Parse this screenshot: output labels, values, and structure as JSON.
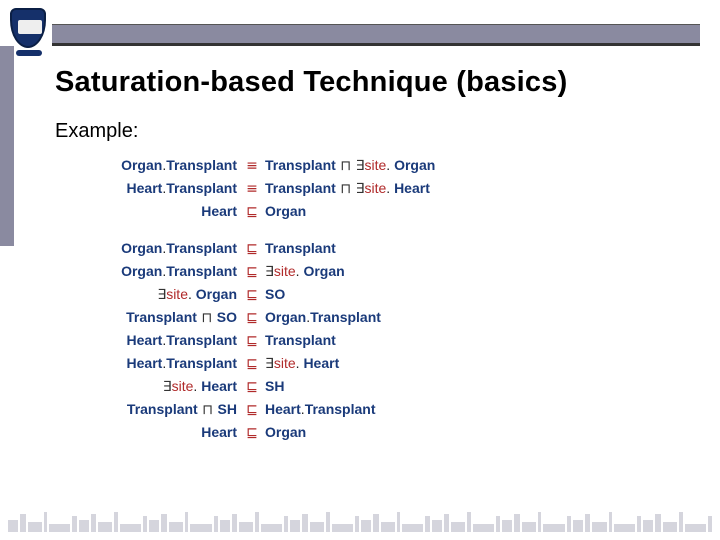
{
  "colors": {
    "header_bar": "#8a8aa0",
    "title_text": "#000000",
    "navy": "#1a3a7a",
    "red": "#b02a2a",
    "black": "#222222",
    "background": "#ffffff"
  },
  "title": "Saturation-based Technique (basics)",
  "example_label": "Example:",
  "symbols": {
    "equiv": "≡",
    "sqsub": "⊑",
    "sqcap": "⊓",
    "exists": "∃"
  },
  "fontsize": {
    "title": 29,
    "example": 20,
    "axiom": 14
  },
  "axioms_top": [
    {
      "lhs": [
        {
          "t": "Organ",
          "c": "navy"
        },
        {
          "t": ".",
          "c": "blk"
        },
        {
          "t": "Transplant",
          "c": "navy"
        }
      ],
      "op": "equiv",
      "rhs": [
        {
          "t": "Transplant",
          "c": "navy"
        },
        {
          "t": " ⊓ ",
          "c": "sym"
        },
        {
          "t": "∃",
          "c": "sym"
        },
        {
          "t": "site",
          "c": "red"
        },
        {
          "t": ". ",
          "c": "blk"
        },
        {
          "t": "Organ",
          "c": "navy"
        }
      ]
    },
    {
      "lhs": [
        {
          "t": "Heart",
          "c": "navy"
        },
        {
          "t": ".",
          "c": "blk"
        },
        {
          "t": "Transplant",
          "c": "navy"
        }
      ],
      "op": "equiv",
      "rhs": [
        {
          "t": "Transplant",
          "c": "navy"
        },
        {
          "t": " ⊓ ",
          "c": "sym"
        },
        {
          "t": "∃",
          "c": "sym"
        },
        {
          "t": "site",
          "c": "red"
        },
        {
          "t": ". ",
          "c": "blk"
        },
        {
          "t": "Heart",
          "c": "navy"
        }
      ]
    },
    {
      "lhs": [
        {
          "t": "Heart",
          "c": "navy"
        }
      ],
      "op": "sqsub",
      "rhs": [
        {
          "t": "Organ",
          "c": "navy"
        }
      ]
    }
  ],
  "axioms_bottom": [
    {
      "lhs": [
        {
          "t": "Organ",
          "c": "navy"
        },
        {
          "t": ".",
          "c": "blk"
        },
        {
          "t": "Transplant",
          "c": "navy"
        }
      ],
      "op": "sqsub",
      "rhs": [
        {
          "t": "Transplant",
          "c": "navy"
        }
      ]
    },
    {
      "lhs": [
        {
          "t": "Organ",
          "c": "navy"
        },
        {
          "t": ".",
          "c": "blk"
        },
        {
          "t": "Transplant",
          "c": "navy"
        }
      ],
      "op": "sqsub",
      "rhs": [
        {
          "t": "∃",
          "c": "sym"
        },
        {
          "t": "site",
          "c": "red"
        },
        {
          "t": ". ",
          "c": "blk"
        },
        {
          "t": "Organ",
          "c": "navy"
        }
      ]
    },
    {
      "lhs": [
        {
          "t": "∃",
          "c": "sym"
        },
        {
          "t": "site",
          "c": "red"
        },
        {
          "t": ". ",
          "c": "blk"
        },
        {
          "t": "Organ",
          "c": "navy"
        }
      ],
      "op": "sqsub",
      "rhs": [
        {
          "t": "SO",
          "c": "navy"
        }
      ]
    },
    {
      "lhs": [
        {
          "t": "Transplant",
          "c": "navy"
        },
        {
          "t": " ⊓ ",
          "c": "sym"
        },
        {
          "t": "SO",
          "c": "navy"
        }
      ],
      "op": "sqsub",
      "rhs": [
        {
          "t": "Organ",
          "c": "navy"
        },
        {
          "t": ".",
          "c": "blk"
        },
        {
          "t": "Transplant",
          "c": "navy"
        }
      ]
    },
    {
      "lhs": [
        {
          "t": "Heart",
          "c": "navy"
        },
        {
          "t": ".",
          "c": "blk"
        },
        {
          "t": "Transplant",
          "c": "navy"
        }
      ],
      "op": "sqsub",
      "rhs": [
        {
          "t": "Transplant",
          "c": "navy"
        }
      ]
    },
    {
      "lhs": [
        {
          "t": "Heart",
          "c": "navy"
        },
        {
          "t": ".",
          "c": "blk"
        },
        {
          "t": "Transplant",
          "c": "navy"
        }
      ],
      "op": "sqsub",
      "rhs": [
        {
          "t": "∃",
          "c": "sym"
        },
        {
          "t": "site",
          "c": "red"
        },
        {
          "t": ". ",
          "c": "blk"
        },
        {
          "t": "Heart",
          "c": "navy"
        }
      ]
    },
    {
      "lhs": [
        {
          "t": "∃",
          "c": "sym"
        },
        {
          "t": "site",
          "c": "red"
        },
        {
          "t": ". ",
          "c": "blk"
        },
        {
          "t": "Heart",
          "c": "navy"
        }
      ],
      "op": "sqsub",
      "rhs": [
        {
          "t": "SH",
          "c": "navy"
        }
      ]
    },
    {
      "lhs": [
        {
          "t": "Transplant",
          "c": "navy"
        },
        {
          "t": " ⊓ ",
          "c": "sym"
        },
        {
          "t": "SH",
          "c": "navy"
        }
      ],
      "op": "sqsub",
      "rhs": [
        {
          "t": "Heart",
          "c": "navy"
        },
        {
          "t": ".",
          "c": "blk"
        },
        {
          "t": "Transplant",
          "c": "navy"
        }
      ]
    },
    {
      "lhs": [
        {
          "t": "Heart",
          "c": "navy"
        }
      ],
      "op": "sqsub",
      "rhs": [
        {
          "t": "Organ",
          "c": "navy"
        }
      ]
    }
  ]
}
